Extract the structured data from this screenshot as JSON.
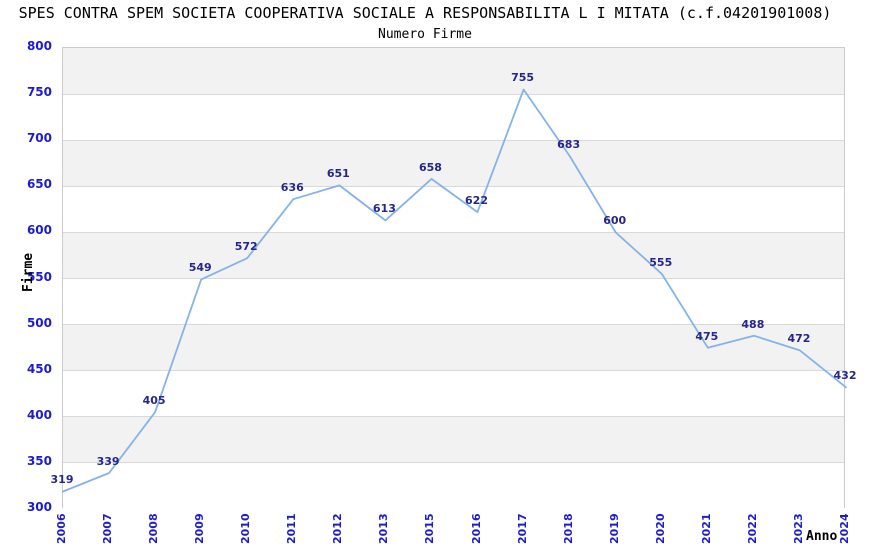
{
  "title": "SPES CONTRA SPEM SOCIETA COOPERATIVA SOCIALE A RESPONSABILITA L I MITATA (c.f.04201901008)",
  "subtitle": "Numero Firme",
  "chart_data": {
    "type": "line",
    "x": [
      2006,
      2007,
      2008,
      2009,
      2010,
      2011,
      2012,
      2013,
      2015,
      2016,
      2017,
      2018,
      2019,
      2020,
      2021,
      2022,
      2023,
      2024
    ],
    "values": [
      319,
      339,
      405,
      549,
      572,
      636,
      651,
      613,
      658,
      622,
      755,
      683,
      600,
      555,
      475,
      488,
      472,
      432
    ],
    "xlabel": "Anno",
    "ylabel": "Firme",
    "ylim": [
      300,
      800
    ],
    "yticks": [
      300,
      350,
      400,
      450,
      500,
      550,
      600,
      650,
      700,
      750,
      800
    ],
    "grid": true,
    "legend": false,
    "data_labels": true,
    "colors": {
      "line": "#85b3e8",
      "data_label": "#26268c",
      "tick_label": "#1c1ccd",
      "band_fill": "#f2f2f2",
      "gridline": "#d9d9d9",
      "plot_border": "#cccccc",
      "text": "#000000"
    }
  }
}
